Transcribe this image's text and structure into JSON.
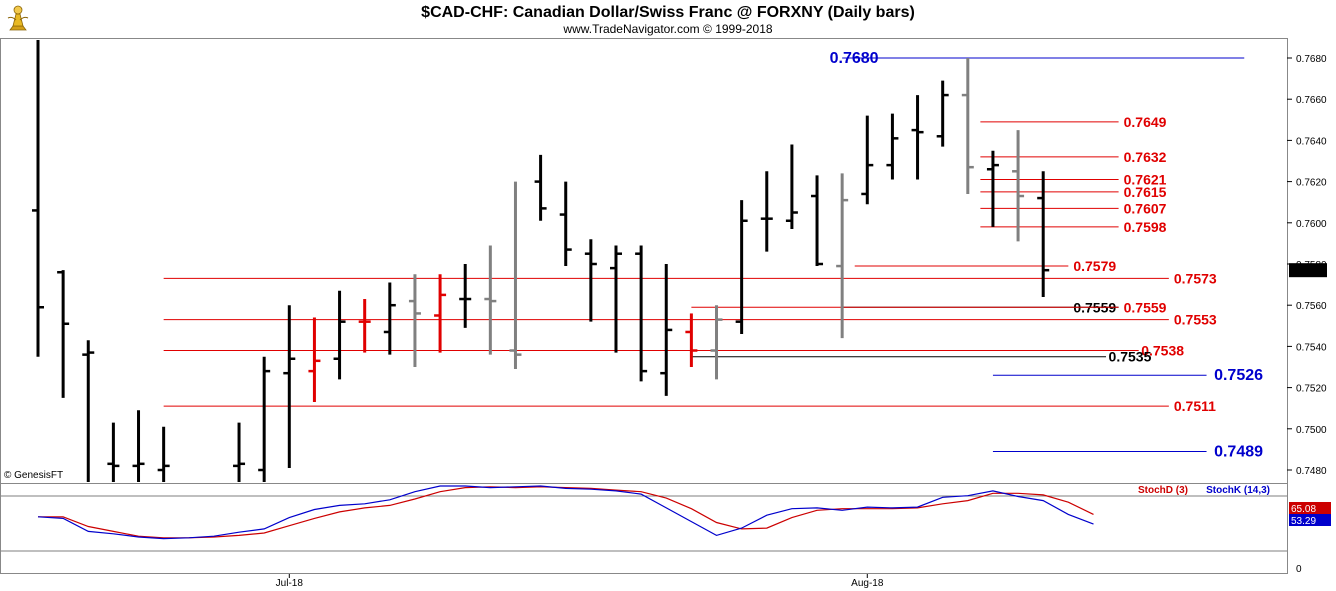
{
  "title": "$CAD-CHF:  Canadian Dollar/Swiss Franc @ FORXNY  (Daily bars)",
  "subtitle": "www.TradeNavigator.com © 1999-2018",
  "copyright": "© GenesisFT",
  "logo_icon": "gold-trophy-icon",
  "colors": {
    "up": "#000000",
    "gray": "#808080",
    "red": "#e00000",
    "blue": "#0000cc",
    "stochK": "#0000cc",
    "stochD": "#cc0000"
  },
  "chart_data": {
    "type": "ohlc",
    "y_axis_ticks": [
      "0.7680",
      "0.7660",
      "0.7640",
      "0.7620",
      "0.7600",
      "0.7580",
      "0.7560",
      "0.7540",
      "0.7520",
      "0.7500",
      "0.7480"
    ],
    "ylim": [
      0.7467,
      0.769
    ],
    "x_labels": [
      {
        "label": "Jul-18",
        "bar": 10
      },
      {
        "label": "Aug-18",
        "bar": 33
      }
    ],
    "last_price": "0.7577",
    "bars": [
      {
        "o": 0.7606,
        "h": 0.7709,
        "l": 0.7535,
        "c": 0.7559,
        "color": "black"
      },
      {
        "o": 0.7576,
        "h": 0.7577,
        "l": 0.7515,
        "c": 0.7551,
        "color": "black"
      },
      {
        "o": 0.7536,
        "h": 0.7543,
        "l": 0.747,
        "c": 0.7537,
        "color": "black"
      },
      {
        "o": 0.7483,
        "h": 0.7503,
        "l": 0.7467,
        "c": 0.7482,
        "color": "black"
      },
      {
        "o": 0.7482,
        "h": 0.7509,
        "l": 0.7467,
        "c": 0.7483,
        "color": "black"
      },
      {
        "o": 0.748,
        "h": 0.7501,
        "l": 0.7467,
        "c": 0.7482,
        "color": "black"
      },
      {
        "o": null,
        "h": null,
        "l": null,
        "c": null,
        "color": "none"
      },
      {
        "o": null,
        "h": null,
        "l": null,
        "c": null,
        "color": "none"
      },
      {
        "o": 0.7482,
        "h": 0.7503,
        "l": 0.7467,
        "c": 0.7483,
        "color": "black"
      },
      {
        "o": 0.748,
        "h": 0.7535,
        "l": 0.7467,
        "c": 0.7528,
        "color": "black"
      },
      {
        "o": 0.7527,
        "h": 0.756,
        "l": 0.7481,
        "c": 0.7534,
        "color": "black"
      },
      {
        "o": 0.7528,
        "h": 0.7554,
        "l": 0.7513,
        "c": 0.7533,
        "color": "red"
      },
      {
        "o": 0.7534,
        "h": 0.7567,
        "l": 0.7524,
        "c": 0.7552,
        "color": "black"
      },
      {
        "o": 0.7552,
        "h": 0.7563,
        "l": 0.7537,
        "c": 0.7552,
        "color": "red"
      },
      {
        "o": 0.7547,
        "h": 0.7571,
        "l": 0.7536,
        "c": 0.756,
        "color": "black"
      },
      {
        "o": 0.7562,
        "h": 0.7575,
        "l": 0.753,
        "c": 0.7556,
        "color": "gray"
      },
      {
        "o": 0.7555,
        "h": 0.7575,
        "l": 0.7537,
        "c": 0.7565,
        "color": "red"
      },
      {
        "o": 0.7563,
        "h": 0.758,
        "l": 0.7549,
        "c": 0.7563,
        "color": "black"
      },
      {
        "o": 0.7563,
        "h": 0.7589,
        "l": 0.7536,
        "c": 0.7562,
        "color": "gray"
      },
      {
        "o": 0.7538,
        "h": 0.762,
        "l": 0.7529,
        "c": 0.7536,
        "color": "gray"
      },
      {
        "o": 0.762,
        "h": 0.7633,
        "l": 0.7601,
        "c": 0.7607,
        "color": "black"
      },
      {
        "o": 0.7604,
        "h": 0.762,
        "l": 0.7579,
        "c": 0.7587,
        "color": "black"
      },
      {
        "o": 0.7585,
        "h": 0.7592,
        "l": 0.7552,
        "c": 0.758,
        "color": "black"
      },
      {
        "o": 0.7578,
        "h": 0.7589,
        "l": 0.7537,
        "c": 0.7585,
        "color": "black"
      },
      {
        "o": 0.7585,
        "h": 0.7589,
        "l": 0.7523,
        "c": 0.7528,
        "color": "black"
      },
      {
        "o": 0.7527,
        "h": 0.758,
        "l": 0.7516,
        "c": 0.7548,
        "color": "black"
      },
      {
        "o": 0.7547,
        "h": 0.7556,
        "l": 0.753,
        "c": 0.7538,
        "color": "red"
      },
      {
        "o": 0.7538,
        "h": 0.756,
        "l": 0.7524,
        "c": 0.7553,
        "color": "gray"
      },
      {
        "o": 0.7552,
        "h": 0.7611,
        "l": 0.7546,
        "c": 0.7601,
        "color": "black"
      },
      {
        "o": 0.7602,
        "h": 0.7625,
        "l": 0.7586,
        "c": 0.7602,
        "color": "black"
      },
      {
        "o": 0.7601,
        "h": 0.7638,
        "l": 0.7597,
        "c": 0.7605,
        "color": "black"
      },
      {
        "o": 0.7613,
        "h": 0.7623,
        "l": 0.7579,
        "c": 0.758,
        "color": "black"
      },
      {
        "o": 0.7579,
        "h": 0.7624,
        "l": 0.7544,
        "c": 0.7611,
        "color": "gray"
      },
      {
        "o": 0.7614,
        "h": 0.7652,
        "l": 0.7609,
        "c": 0.7628,
        "color": "black"
      },
      {
        "o": 0.7628,
        "h": 0.7653,
        "l": 0.7621,
        "c": 0.7641,
        "color": "black"
      },
      {
        "o": 0.7645,
        "h": 0.7662,
        "l": 0.7621,
        "c": 0.7644,
        "color": "black"
      },
      {
        "o": 0.7642,
        "h": 0.7669,
        "l": 0.7637,
        "c": 0.7662,
        "color": "black"
      },
      {
        "o": 0.7662,
        "h": 0.768,
        "l": 0.7614,
        "c": 0.7627,
        "color": "gray"
      },
      {
        "o": 0.7626,
        "h": 0.7635,
        "l": 0.7598,
        "c": 0.7628,
        "color": "black"
      },
      {
        "o": 0.7625,
        "h": 0.7645,
        "l": 0.7591,
        "c": 0.7613,
        "color": "gray"
      },
      {
        "o": 0.7612,
        "h": 0.7625,
        "l": 0.7564,
        "c": 0.7577,
        "color": "black"
      }
    ],
    "levels": [
      {
        "value": 0.768,
        "label": "0.7680",
        "color": "blue",
        "x1bar": 32,
        "x2bar": 48,
        "labelBar": 31.5,
        "big": true
      },
      {
        "value": 0.7649,
        "label": "0.7649",
        "color": "red",
        "x1bar": 37.5,
        "x2bar": 43,
        "labelBar": 43.2
      },
      {
        "value": 0.7632,
        "label": "0.7632",
        "color": "red",
        "x1bar": 37.5,
        "x2bar": 43,
        "labelBar": 43.2
      },
      {
        "value": 0.7621,
        "label": "0.7621",
        "color": "red",
        "x1bar": 37.5,
        "x2bar": 43,
        "labelBar": 43.2
      },
      {
        "value": 0.7615,
        "label": "0.7615",
        "color": "red",
        "x1bar": 37.5,
        "x2bar": 43,
        "labelBar": 43.2
      },
      {
        "value": 0.7607,
        "label": "0.7607",
        "color": "red",
        "x1bar": 37.5,
        "x2bar": 43,
        "labelBar": 43.2
      },
      {
        "value": 0.7598,
        "label": "0.7598",
        "color": "red",
        "x1bar": 37.5,
        "x2bar": 43,
        "labelBar": 43.2
      },
      {
        "value": 0.7579,
        "label": "0.7579",
        "color": "red",
        "x1bar": 32.5,
        "x2bar": 41,
        "labelBar": 41.2
      },
      {
        "value": 0.7573,
        "label": "0.7573",
        "color": "red",
        "x1bar": 5,
        "x2bar": 45,
        "labelBar": 45.2
      },
      {
        "value": 0.7559,
        "label": "0.7559",
        "color": "black",
        "x1bar": 32,
        "x2bar": 43,
        "labelBar": 41.2
      },
      {
        "value": 0.7559,
        "label": "0.7559",
        "color": "red",
        "x1bar": 26,
        "x2bar": 43,
        "labelBar": 43.2
      },
      {
        "value": 0.7553,
        "label": "0.7553",
        "color": "red",
        "x1bar": 5,
        "x2bar": 45,
        "labelBar": 45.2
      },
      {
        "value": 0.7538,
        "label": "0.7538",
        "color": "red",
        "x1bar": 5,
        "x2bar": 43.8,
        "labelBar": 43.9
      },
      {
        "value": 0.7535,
        "label": "0.7535",
        "color": "black",
        "x1bar": 26,
        "x2bar": 42.5,
        "labelBar": 42.6
      },
      {
        "value": 0.7526,
        "label": "0.7526",
        "color": "blue",
        "x1bar": 38,
        "x2bar": 46.5,
        "labelBar": 46.8,
        "big": true
      },
      {
        "value": 0.7511,
        "label": "0.7511",
        "color": "red",
        "x1bar": 5,
        "x2bar": 45,
        "labelBar": 45.2
      },
      {
        "value": 0.7489,
        "label": "0.7489",
        "color": "blue",
        "x1bar": 38,
        "x2bar": 46.5,
        "labelBar": 46.8,
        "big": true
      }
    ]
  },
  "stoch": {
    "k_label": "StochK (14,3)",
    "d_label": "StochD (3)",
    "k_value": "53.29",
    "d_value": "65.08",
    "zero_label": "0",
    "k": [
      62,
      60,
      44,
      41,
      37,
      35,
      36,
      38,
      43,
      47,
      61,
      71,
      76,
      78,
      83,
      93,
      100,
      100,
      98,
      99,
      100,
      97,
      96,
      94,
      90,
      73,
      56,
      39,
      48,
      64,
      72,
      73,
      70,
      74,
      73,
      74,
      86,
      88,
      94,
      87,
      82,
      65,
      53
    ],
    "d": [
      62,
      62,
      50,
      44,
      38,
      36,
      36,
      37,
      39,
      42,
      51,
      60,
      68,
      73,
      76,
      84,
      93,
      98,
      99,
      98,
      99,
      98,
      97,
      95,
      93,
      85,
      72,
      55,
      47,
      48,
      61,
      70,
      72,
      72,
      72,
      73,
      78,
      82,
      91,
      91,
      89,
      80,
      65
    ]
  }
}
